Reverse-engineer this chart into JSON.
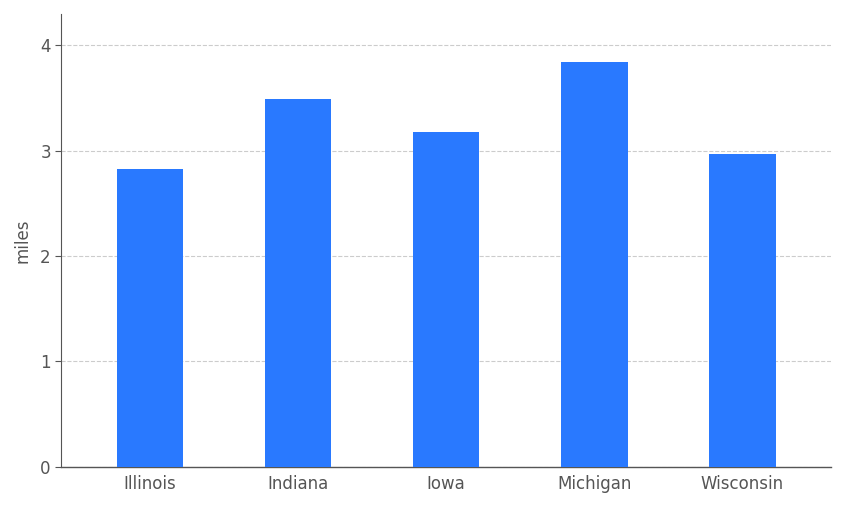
{
  "categories": [
    "Illinois",
    "Indiana",
    "Iowa",
    "Michigan",
    "Wisconsin"
  ],
  "values": [
    2.83,
    3.49,
    3.18,
    3.84,
    2.97
  ],
  "bar_color": "#2979FF",
  "ylabel": "miles",
  "ylim": [
    0,
    4.3
  ],
  "yticks": [
    0,
    1,
    2,
    3,
    4
  ],
  "background_color": "#ffffff",
  "grid_color": "#cccccc",
  "bar_width": 0.45,
  "tick_color": "#555555",
  "spine_color": "#555555",
  "label_fontsize": 12,
  "ylabel_fontsize": 12
}
